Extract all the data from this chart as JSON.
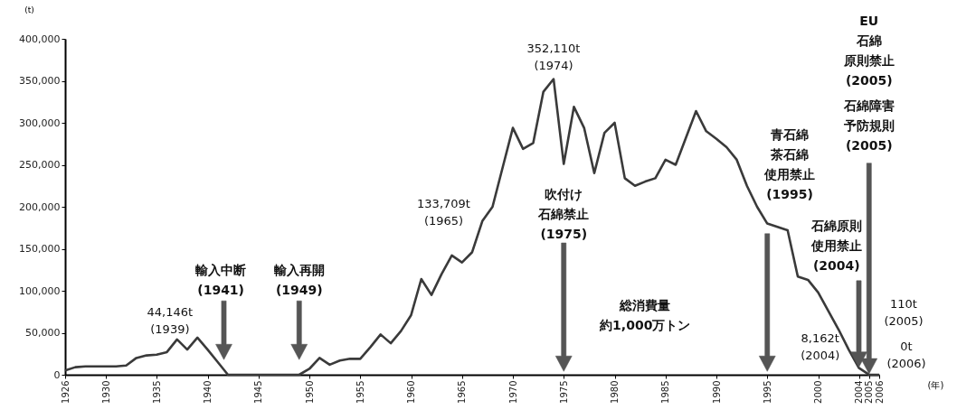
{
  "chart_data": {
    "type": "line",
    "xlabel": "(年)",
    "ylabel": "(t)",
    "x": [
      1926,
      1927,
      1928,
      1929,
      1930,
      1931,
      1932,
      1933,
      1934,
      1935,
      1936,
      1937,
      1938,
      1939,
      1940,
      1941,
      1942,
      1943,
      1944,
      1945,
      1946,
      1947,
      1948,
      1949,
      1950,
      1951,
      1952,
      1953,
      1954,
      1955,
      1956,
      1957,
      1958,
      1959,
      1960,
      1961,
      1962,
      1963,
      1964,
      1965,
      1966,
      1967,
      1968,
      1969,
      1970,
      1971,
      1972,
      1973,
      1974,
      1975,
      1976,
      1977,
      1978,
      1979,
      1980,
      1981,
      1982,
      1983,
      1984,
      1985,
      1986,
      1987,
      1988,
      1989,
      1990,
      1991,
      1992,
      1993,
      1994,
      1995,
      1996,
      1997,
      1998,
      1999,
      2000,
      2001,
      2002,
      2003,
      2004,
      2005,
      2006
    ],
    "series": [
      {
        "color": "#3a3a3a",
        "values": [
          5000,
          9000,
          10000,
          10000,
          10000,
          10000,
          11000,
          20000,
          23000,
          24000,
          27000,
          42000,
          30000,
          44146,
          30000,
          15000,
          0,
          0,
          0,
          0,
          0,
          0,
          0,
          0,
          7000,
          20000,
          12000,
          17000,
          19000,
          19000,
          33000,
          48000,
          37500,
          52000,
          71000,
          114000,
          95000,
          120000,
          142000,
          133709,
          146000,
          183000,
          200000,
          247000,
          294000,
          269000,
          276000,
          337000,
          352110,
          251000,
          319000,
          294000,
          240000,
          288000,
          300000,
          234000,
          225000,
          230000,
          234000,
          256000,
          250000,
          282000,
          314000,
          290000,
          281000,
          271000,
          256000,
          225000,
          200000,
          180000,
          176000,
          172000,
          117000,
          113000,
          98000,
          76000,
          54000,
          30000,
          8162,
          110,
          0
        ]
      }
    ],
    "xlim": [
      1926,
      2006
    ],
    "xticks": [
      1926,
      1930,
      1935,
      1940,
      1945,
      1950,
      1955,
      1960,
      1965,
      1970,
      1975,
      1980,
      1985,
      1990,
      1995,
      2000,
      2004,
      2005,
      2006
    ],
    "ylim": [
      0,
      400000
    ],
    "yticks": [
      {
        "value": 0,
        "label": "0"
      },
      {
        "value": 50000,
        "label": "50,000"
      },
      {
        "value": 100000,
        "label": "100,000"
      },
      {
        "value": 150000,
        "label": "150,000"
      },
      {
        "value": 200000,
        "label": "200,000"
      },
      {
        "value": 250000,
        "label": "250,000"
      },
      {
        "value": 300000,
        "label": "300,000"
      },
      {
        "value": 350000,
        "label": "350,000"
      },
      {
        "value": 400000,
        "label": "400,000"
      }
    ],
    "grid": false,
    "marker": "none",
    "line_style": "solid",
    "annotations": [
      {
        "text": "44,146t\n(1939)",
        "x": 1939,
        "y": 44146
      },
      "輸入中断\n(1941)",
      "輸入再開\n(1949)",
      "133,709t\n(1965)",
      {
        "text": "352,110t\n(1974)",
        "x": 1974,
        "y": 352110
      },
      "吹付け石綿禁止\n(1975)",
      "総消費量約1,000万トン",
      "青石綿茶石綿使用禁止\n(1995)",
      {
        "text": "8,162t\n(2004)",
        "x": 2004,
        "y": 8162
      },
      "石綿原則使用禁止\n(2004)",
      "110t\n(2005)",
      "EU石綿原則禁止\n(2005)",
      "石綿障害予防規則\n(2005)",
      "0t\n(2006)"
    ]
  }
}
